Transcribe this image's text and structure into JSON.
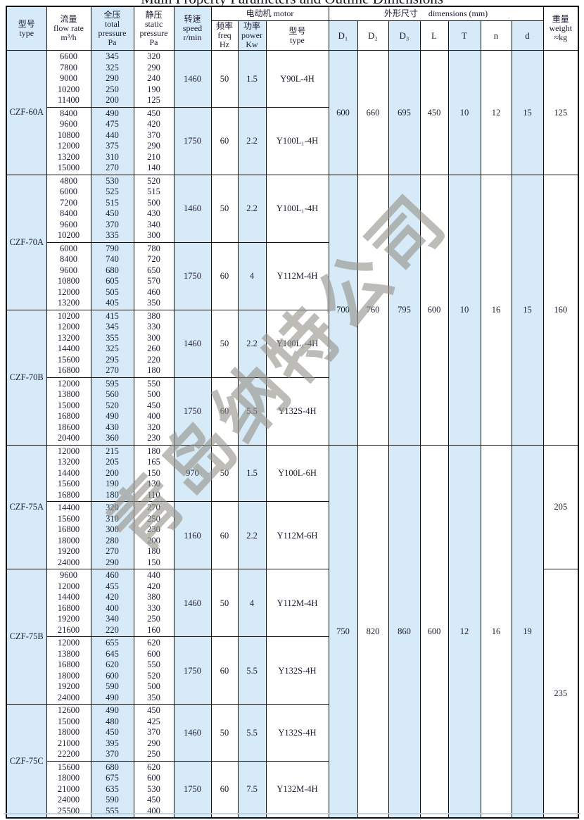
{
  "title": "Main Property Parameters and Outline Dimensions",
  "watermark": "青岛纳特公司",
  "colors": {
    "column_shade": "#d6ebf7",
    "grid_border": "#101010",
    "text": "#1b1b2f",
    "watermark_gray": "#97948c"
  },
  "header": {
    "type": "型号\ntype",
    "flow": "流量\nflow rate\nm³/h",
    "total": "全压\ntotal\npressure\nPa",
    "static": "静压\nstatic\npressure\nPa",
    "speed": "转速\nspeed\nr/min",
    "motor_group": "电动机  motor",
    "freq": "频率\nfreq\nHz",
    "power": "功率\npower\nKw",
    "motor_type": "型号\ntype",
    "dims_group": "外形尺寸　 dimensions (mm)",
    "d1": "D₁",
    "d2": "D₂",
    "d3": "D₃",
    "l": "L",
    "t": "T",
    "n": "n",
    "d": "d",
    "weight": "重量\nweight\n≈kg"
  },
  "table": {
    "blocks": [
      {
        "model": "CZF-60A",
        "subs": [
          {
            "flow": [
              6600,
              7800,
              9000,
              10200,
              11400
            ],
            "total": [
              345,
              325,
              290,
              250,
              200
            ],
            "static": [
              320,
              290,
              240,
              190,
              125
            ],
            "speed": "1460",
            "freq": "50",
            "power": "1.5",
            "motor": "Y90L-4H"
          },
          {
            "flow": [
              8400,
              9600,
              10800,
              12000,
              13200,
              15000
            ],
            "total": [
              490,
              475,
              440,
              375,
              310,
              270
            ],
            "static": [
              450,
              420,
              370,
              290,
              210,
              140
            ],
            "speed": "1750",
            "freq": "60",
            "power": "2.2",
            "motor": "Y100L₁-4H"
          }
        ]
      },
      {
        "model": "CZF-70A",
        "subs": [
          {
            "flow": [
              4800,
              6000,
              7200,
              8400,
              9600,
              10200
            ],
            "total": [
              530,
              525,
              515,
              450,
              370,
              335
            ],
            "static": [
              520,
              515,
              500,
              430,
              340,
              300
            ],
            "speed": "1460",
            "freq": "50",
            "power": "2.2",
            "motor": "Y100L₁-4H"
          },
          {
            "flow": [
              6000,
              8400,
              9600,
              10800,
              12000,
              13200
            ],
            "total": [
              790,
              740,
              680,
              605,
              505,
              405
            ],
            "static": [
              780,
              720,
              650,
              570,
              460,
              350
            ],
            "speed": "1750",
            "freq": "60",
            "power": "4",
            "motor": "Y112M-4H"
          }
        ]
      },
      {
        "model": "CZF-70B",
        "subs": [
          {
            "flow": [
              10200,
              12000,
              13200,
              14400,
              15600,
              16800
            ],
            "total": [
              415,
              345,
              355,
              325,
              295,
              270
            ],
            "static": [
              380,
              330,
              300,
              260,
              220,
              180
            ],
            "speed": "1460",
            "freq": "50",
            "power": "2.2",
            "motor": "Y100L₁-4H"
          },
          {
            "flow": [
              12000,
              13800,
              15000,
              16800,
              18600,
              20400
            ],
            "total": [
              595,
              560,
              520,
              490,
              430,
              360
            ],
            "static": [
              550,
              500,
              450,
              400,
              320,
              230
            ],
            "speed": "1750",
            "freq": "60",
            "power": "5.5",
            "motor": "Y132S-4H"
          }
        ]
      },
      {
        "model": "CZF-75A",
        "subs": [
          {
            "flow": [
              12000,
              13200,
              14400,
              15600,
              16800
            ],
            "total": [
              215,
              205,
              200,
              190,
              180
            ],
            "static": [
              180,
              165,
              150,
              130,
              110
            ],
            "speed": "970",
            "freq": "50",
            "power": "1.5",
            "motor": "Y100L-6H"
          },
          {
            "flow": [
              14400,
              15600,
              16800,
              18000,
              19200,
              24000
            ],
            "total": [
              320,
              310,
              300,
              280,
              270,
              290
            ],
            "static": [
              270,
              250,
              230,
              200,
              180,
              150
            ],
            "speed": "1160",
            "freq": "60",
            "power": "2.2",
            "motor": "Y112M-6H"
          }
        ]
      },
      {
        "model": "CZF-75B",
        "subs": [
          {
            "flow": [
              9600,
              12000,
              14400,
              16800,
              19200,
              21600
            ],
            "total": [
              460,
              455,
              420,
              400,
              340,
              220
            ],
            "static": [
              440,
              420,
              380,
              330,
              250,
              160
            ],
            "speed": "1460",
            "freq": "50",
            "power": "4",
            "motor": "Y112M-4H"
          },
          {
            "flow": [
              12000,
              13800,
              16800,
              18000,
              19200,
              24000
            ],
            "total": [
              655,
              645,
              620,
              600,
              590,
              490
            ],
            "static": [
              620,
              600,
              550,
              520,
              500,
              350
            ],
            "speed": "1750",
            "freq": "60",
            "power": "5.5",
            "motor": "Y132S-4H"
          }
        ]
      },
      {
        "model": "CZF-75C",
        "subs": [
          {
            "flow": [
              12600,
              15000,
              18000,
              21000,
              22200
            ],
            "total": [
              490,
              480,
              450,
              395,
              370
            ],
            "static": [
              450,
              425,
              370,
              290,
              250
            ],
            "speed": "1460",
            "freq": "50",
            "power": "5.5",
            "motor": "Y132S-4H"
          },
          {
            "flow": [
              15600,
              18000,
              21000,
              24000,
              25500
            ],
            "total": [
              680,
              675,
              635,
              590,
              555
            ],
            "static": [
              620,
              600,
              530,
              450,
              400
            ],
            "speed": "1750",
            "freq": "60",
            "power": "7.5",
            "motor": "Y132M-4H"
          }
        ]
      }
    ],
    "dim_groups": [
      {
        "blocks": [
          0
        ],
        "dims": [
          "600",
          "660",
          "695",
          "450",
          "10",
          "12",
          "15"
        ]
      },
      {
        "blocks": [
          1,
          2
        ],
        "dims": [
          "700",
          "760",
          "795",
          "600",
          "10",
          "16",
          "15"
        ]
      },
      {
        "blocks": [
          3,
          4,
          5
        ],
        "dims": [
          "750",
          "820",
          "860",
          "600",
          "12",
          "16",
          "19"
        ]
      }
    ],
    "weight_groups": [
      {
        "blocks": [
          0
        ],
        "weight": "125"
      },
      {
        "blocks": [
          1,
          2
        ],
        "weight": "160"
      },
      {
        "blocks": [
          3
        ],
        "weight": "205"
      },
      {
        "blocks": [
          4,
          5
        ],
        "weight": "235"
      }
    ]
  }
}
